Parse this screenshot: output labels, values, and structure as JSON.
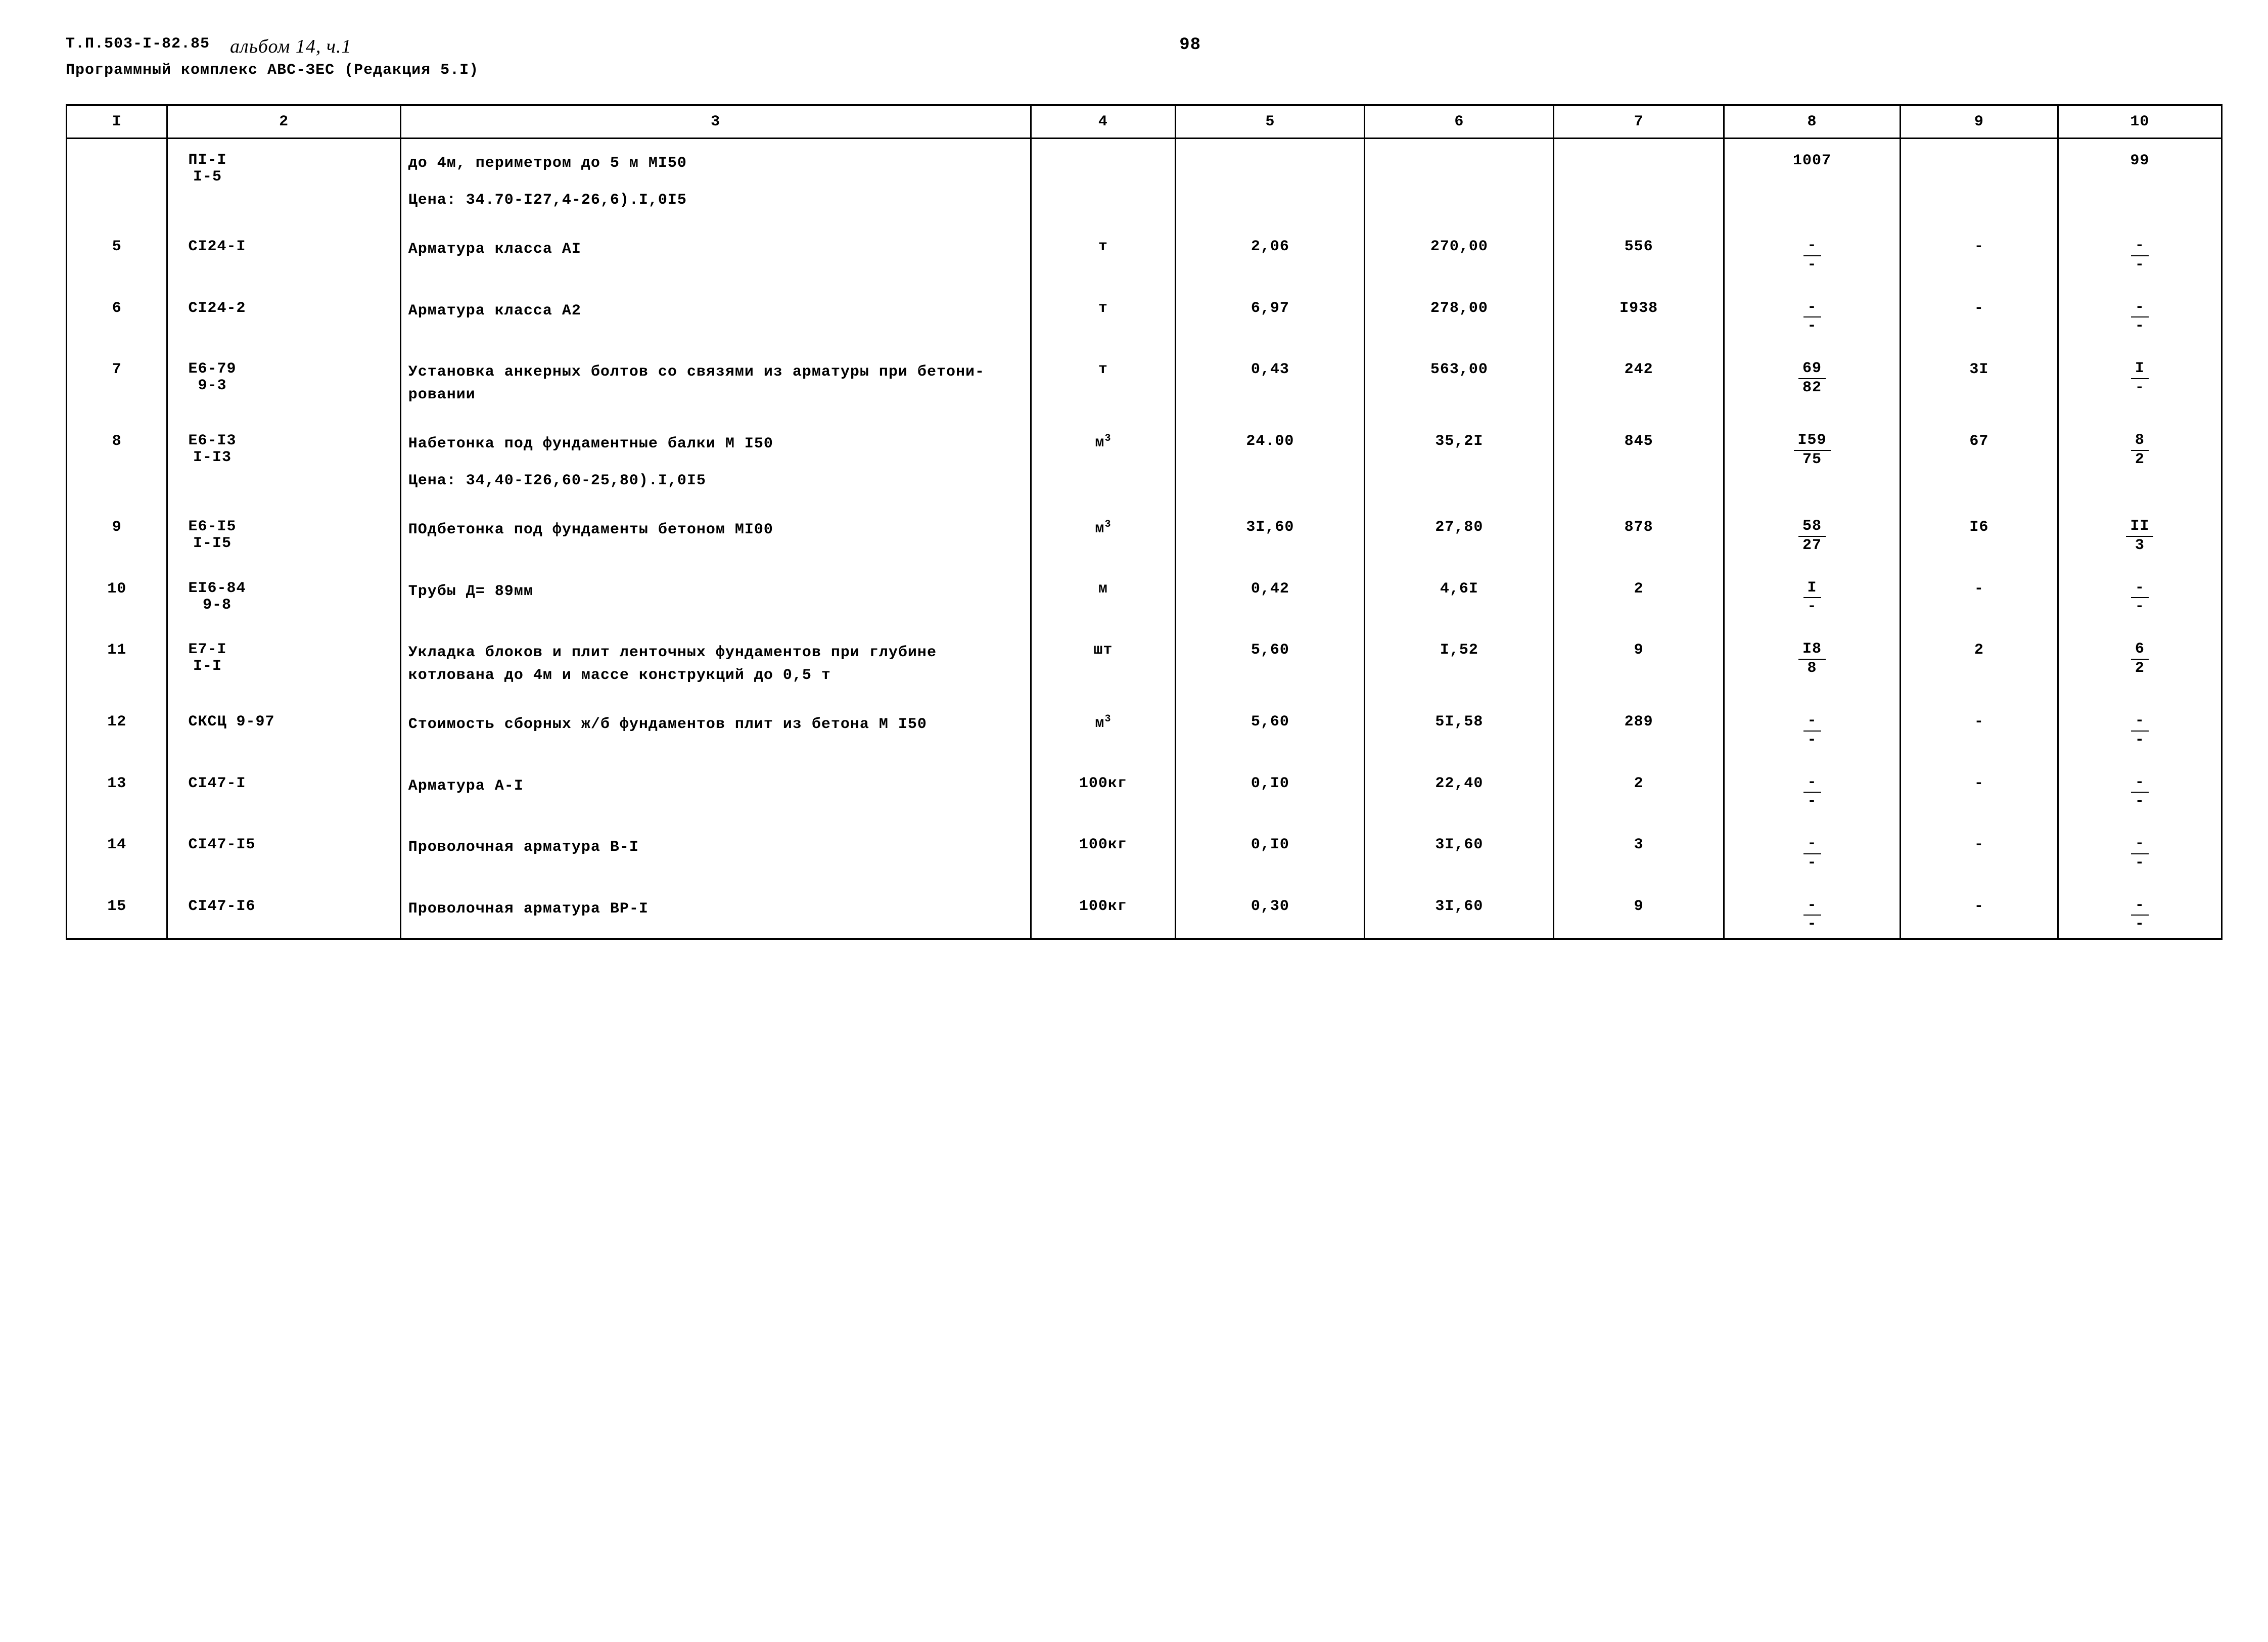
{
  "header": {
    "doc_id": "Т.П.503-I-82.85",
    "album": "альбом 14, ч.1",
    "subtitle": "Программный комплекс АВС-ЗЕС (Редакция 5.I)",
    "page_num": "98"
  },
  "table": {
    "columns": [
      "I",
      "2",
      "3",
      "4",
      "5",
      "6",
      "7",
      "8",
      "9",
      "10"
    ],
    "rows": [
      {
        "n": "",
        "code": {
          "top": "ПI-I",
          "bot": "I-5"
        },
        "desc": "до 4м, периметром до 5 м  МI50\nЦена: 34.70-I27,4-26,6).I,0I5",
        "c4": "",
        "c5": "",
        "c6": "",
        "c7": "",
        "c8": "1007",
        "c9": "",
        "c10": "99"
      },
      {
        "n": "5",
        "code": "СI24-I",
        "desc": "Арматура класса АI",
        "c4": "т",
        "c5": "2,06",
        "c6": "270,00",
        "c7": "556",
        "c8": {
          "top": "-",
          "bot": "-"
        },
        "c9": "-",
        "c10": {
          "top": "-",
          "bot": "-"
        }
      },
      {
        "n": "6",
        "code": "СI24-2",
        "desc": "Арматура класса А2",
        "c4": "т",
        "c5": "6,97",
        "c6": "278,00",
        "c7": "I938",
        "c8": {
          "top": "-",
          "bot": "-"
        },
        "c9": "-",
        "c10": {
          "top": "-",
          "bot": "-"
        }
      },
      {
        "n": "7",
        "code": {
          "top": "Е6-79",
          "bot": "9-3"
        },
        "desc": "Установка анкерных болтов со связями из арматуры при бетони-\nровании",
        "c4": "т",
        "c5": "0,43",
        "c6": "563,00",
        "c7": "242",
        "c8": {
          "top": "69",
          "bot": "82"
        },
        "c9": "3I",
        "c10": {
          "top": "I",
          "bot": "-"
        }
      },
      {
        "n": "8",
        "code": {
          "top": "Е6-I3",
          "bot": "I-I3"
        },
        "desc": "Набетонка под фундаментные балки М I50\nЦена: 34,40-I26,60-25,80).I,0I5",
        "c4": "м³",
        "c5": "24.00",
        "c6": "35,2I",
        "c7": "845",
        "c8": {
          "top": "I59",
          "bot": "75"
        },
        "c9": "67",
        "c10": {
          "top": "8",
          "bot": "2"
        }
      },
      {
        "n": "9",
        "code": {
          "top": "Е6-I5",
          "bot": "I-I5"
        },
        "desc": "ПОдбетонка под фундаменты бетоном МI00",
        "c4": "м³",
        "c5": "3I,60",
        "c6": "27,80",
        "c7": "878",
        "c8": {
          "top": "58",
          "bot": "27"
        },
        "c9": "I6",
        "c10": {
          "top": "II",
          "bot": "3"
        }
      },
      {
        "n": "10",
        "code": {
          "top": "ЕI6-84",
          "bot": "9-8"
        },
        "desc": "Трубы Д= 89мм",
        "c4": "м",
        "c5": "0,42",
        "c6": "4,6I",
        "c7": "2",
        "c8": {
          "top": "I",
          "bot": "-"
        },
        "c9": "-",
        "c10": {
          "top": "-",
          "bot": "-"
        }
      },
      {
        "n": "11",
        "code": {
          "top": "Е7-I",
          "bot": "I-I"
        },
        "desc": "Укладка блоков и плит ленточных фундаментов при глубине котлована до 4м и массе конструкций до 0,5 т",
        "c4": "шт",
        "c5": "5,60",
        "c6": "I,52",
        "c7": "9",
        "c8": {
          "top": "I8",
          "bot": "8"
        },
        "c9": "2",
        "c10": {
          "top": "6",
          "bot": "2"
        }
      },
      {
        "n": "12",
        "code": "СКСЦ 9-97",
        "desc": "Стоимость сборных ж/б фундаментов плит из бетона М I50",
        "c4": "м³",
        "c5": "5,60",
        "c6": "5I,58",
        "c7": "289",
        "c8": {
          "top": "-",
          "bot": "-"
        },
        "c9": "-",
        "c10": {
          "top": "-",
          "bot": "-"
        }
      },
      {
        "n": "13",
        "code": "СI47-I",
        "desc": "Арматура А-I",
        "c4": "100кг",
        "c5": "0,I0",
        "c6": "22,40",
        "c7": "2",
        "c8": {
          "top": "-",
          "bot": "-"
        },
        "c9": "-",
        "c10": {
          "top": "-",
          "bot": "-"
        }
      },
      {
        "n": "14",
        "code": "СI47-I5",
        "desc": "Проволочная арматура В-I",
        "c4": "100кг",
        "c5": "0,I0",
        "c6": "3I,60",
        "c7": "3",
        "c8": {
          "top": "-",
          "bot": "-"
        },
        "c9": "-",
        "c10": {
          "top": "-",
          "bot": "-"
        }
      },
      {
        "n": "15",
        "code": "СI47-I6",
        "desc": "Проволочная арматура ВР-I",
        "c4": "100кг",
        "c5": "0,30",
        "c6": "3I,60",
        "c7": "9",
        "c8": {
          "top": "-",
          "bot": "-"
        },
        "c9": "-",
        "c10": {
          "top": "-",
          "bot": "-"
        }
      }
    ]
  }
}
